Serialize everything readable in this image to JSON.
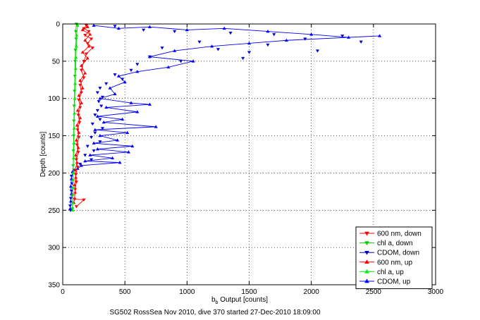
{
  "figure": {
    "caption": "SG502 RossSea Nov 2010, dive 370 started 27-Dec-2010 18:09:00"
  },
  "chart_data": {
    "type": "scatter",
    "title": "",
    "xlabel_main": "b",
    "xlabel_sub": "b",
    "xlabel_rest": " Output [counts]",
    "ylabel": "Depth [counts]",
    "xlim": [
      0,
      3000
    ],
    "ylim": [
      0,
      350
    ],
    "y_reversed": true,
    "grid": true,
    "legend_position": "bottom-right",
    "x_ticks": [
      "0",
      "500",
      "1000",
      "1500",
      "2000",
      "2500",
      "3000"
    ],
    "x_tick_values": [
      0,
      500,
      1000,
      1500,
      2000,
      2500,
      3000
    ],
    "y_ticks": [
      "0",
      "50",
      "100",
      "150",
      "200",
      "250",
      "300",
      "350"
    ],
    "y_tick_values": [
      0,
      50,
      100,
      150,
      200,
      250,
      300,
      350
    ],
    "series": [
      {
        "name": "600 nm, down",
        "color": "#ff0000",
        "marker": "triangle-down",
        "line": true,
        "points": [
          [
            190,
            2
          ],
          [
            170,
            6
          ],
          [
            210,
            10
          ],
          [
            180,
            15
          ],
          [
            230,
            20
          ],
          [
            200,
            26
          ],
          [
            240,
            32
          ],
          [
            190,
            40
          ],
          [
            170,
            50
          ],
          [
            150,
            62
          ],
          [
            170,
            72
          ],
          [
            140,
            82
          ],
          [
            150,
            92
          ],
          [
            130,
            102
          ],
          [
            140,
            112
          ],
          [
            125,
            122
          ],
          [
            135,
            132
          ],
          [
            120,
            142
          ],
          [
            130,
            152
          ],
          [
            115,
            162
          ],
          [
            125,
            172
          ],
          [
            110,
            182
          ],
          [
            120,
            192
          ],
          [
            105,
            202
          ],
          [
            110,
            212
          ],
          [
            100,
            222
          ],
          [
            95,
            235
          ],
          [
            170,
            236
          ],
          [
            110,
            245
          ]
        ]
      },
      {
        "name": "chl a, down",
        "color": "#00cc00",
        "marker": "triangle-down",
        "line": true,
        "points": [
          [
            110,
            0
          ],
          [
            105,
            10
          ],
          [
            108,
            20
          ],
          [
            102,
            35
          ],
          [
            100,
            50
          ],
          [
            98,
            70
          ],
          [
            95,
            90
          ],
          [
            92,
            110
          ],
          [
            90,
            130
          ],
          [
            88,
            150
          ],
          [
            86,
            170
          ],
          [
            84,
            190
          ],
          [
            82,
            210
          ],
          [
            80,
            230
          ],
          [
            78,
            248
          ]
        ]
      },
      {
        "name": "CDOM, down",
        "color": "#0000cc",
        "marker": "triangle-down",
        "line": false,
        "points": [
          [
            420,
            3
          ],
          [
            650,
            8
          ],
          [
            900,
            10
          ],
          [
            1350,
            12
          ],
          [
            1700,
            14
          ],
          [
            2250,
            16
          ],
          [
            2400,
            24
          ],
          [
            1950,
            20
          ],
          [
            1100,
            24
          ],
          [
            1650,
            28
          ],
          [
            800,
            32
          ],
          [
            1250,
            34
          ],
          [
            2050,
            36
          ],
          [
            1500,
            38
          ],
          [
            700,
            44
          ],
          [
            1450,
            46
          ],
          [
            950,
            50
          ],
          [
            600,
            54
          ],
          [
            550,
            62
          ],
          [
            420,
            68
          ],
          [
            480,
            74
          ],
          [
            350,
            80
          ],
          [
            300,
            86
          ],
          [
            280,
            92
          ],
          [
            320,
            98
          ],
          [
            290,
            104
          ],
          [
            310,
            110
          ],
          [
            280,
            116
          ],
          [
            260,
            122
          ],
          [
            300,
            128
          ],
          [
            240,
            134
          ],
          [
            320,
            140
          ],
          [
            260,
            146
          ],
          [
            230,
            152
          ],
          [
            300,
            158
          ],
          [
            200,
            164
          ],
          [
            250,
            170
          ],
          [
            180,
            176
          ],
          [
            230,
            182
          ],
          [
            140,
            188
          ],
          [
            90,
            196
          ],
          [
            70,
            204
          ],
          [
            75,
            214
          ],
          [
            70,
            224
          ],
          [
            65,
            234
          ],
          [
            60,
            244
          ],
          [
            62,
            250
          ]
        ]
      },
      {
        "name": "600 nm, up",
        "color": "#ff0000",
        "marker": "triangle-up",
        "line": true,
        "points": [
          [
            200,
            4
          ],
          [
            160,
            8
          ],
          [
            220,
            14
          ],
          [
            180,
            22
          ],
          [
            210,
            30
          ],
          [
            160,
            38
          ],
          [
            200,
            46
          ],
          [
            150,
            56
          ],
          [
            180,
            66
          ],
          [
            140,
            76
          ],
          [
            160,
            86
          ],
          [
            130,
            96
          ],
          [
            150,
            106
          ],
          [
            120,
            116
          ],
          [
            140,
            126
          ],
          [
            115,
            136
          ],
          [
            130,
            146
          ],
          [
            110,
            156
          ],
          [
            125,
            166
          ],
          [
            105,
            176
          ],
          [
            115,
            186
          ],
          [
            100,
            196
          ],
          [
            105,
            206
          ],
          [
            95,
            216
          ],
          [
            100,
            226
          ],
          [
            90,
            240
          ]
        ]
      },
      {
        "name": "chl a, up",
        "color": "#00ee00",
        "marker": "triangle-up",
        "line": true,
        "points": [
          [
            120,
            2
          ],
          [
            112,
            15
          ],
          [
            110,
            30
          ],
          [
            106,
            45
          ],
          [
            104,
            60
          ],
          [
            100,
            80
          ],
          [
            97,
            100
          ],
          [
            94,
            120
          ],
          [
            92,
            140
          ],
          [
            90,
            160
          ],
          [
            87,
            180
          ],
          [
            85,
            200
          ],
          [
            83,
            220
          ],
          [
            81,
            240
          ],
          [
            80,
            250
          ]
        ]
      },
      {
        "name": "CDOM, up",
        "color": "#0000ff",
        "marker": "triangle-up",
        "line": true,
        "points": [
          [
            250,
            2
          ],
          [
            450,
            6
          ],
          [
            700,
            4
          ],
          [
            1000,
            8
          ],
          [
            1300,
            6
          ],
          [
            1650,
            10
          ],
          [
            2000,
            14
          ],
          [
            2300,
            18
          ],
          [
            2550,
            16
          ],
          [
            1800,
            22
          ],
          [
            1500,
            26
          ],
          [
            1200,
            30
          ],
          [
            900,
            36
          ],
          [
            700,
            44
          ],
          [
            1050,
            50
          ],
          [
            850,
            58
          ],
          [
            600,
            64
          ],
          [
            450,
            70
          ],
          [
            500,
            78
          ],
          [
            380,
            86
          ],
          [
            420,
            94
          ],
          [
            300,
            100
          ],
          [
            550,
            106
          ],
          [
            700,
            108
          ],
          [
            350,
            112
          ],
          [
            600,
            118
          ],
          [
            280,
            124
          ],
          [
            480,
            128
          ],
          [
            330,
            132
          ],
          [
            750,
            138
          ],
          [
            260,
            142
          ],
          [
            520,
            146
          ],
          [
            300,
            150
          ],
          [
            440,
            156
          ],
          [
            250,
            160
          ],
          [
            560,
            164
          ],
          [
            280,
            168
          ],
          [
            530,
            172
          ],
          [
            220,
            176
          ],
          [
            400,
            180
          ],
          [
            180,
            184
          ],
          [
            460,
            186
          ],
          [
            150,
            190
          ],
          [
            120,
            194
          ],
          [
            80,
            198
          ],
          [
            70,
            208
          ],
          [
            65,
            218
          ],
          [
            70,
            228
          ],
          [
            65,
            238
          ],
          [
            60,
            248
          ]
        ]
      }
    ]
  }
}
